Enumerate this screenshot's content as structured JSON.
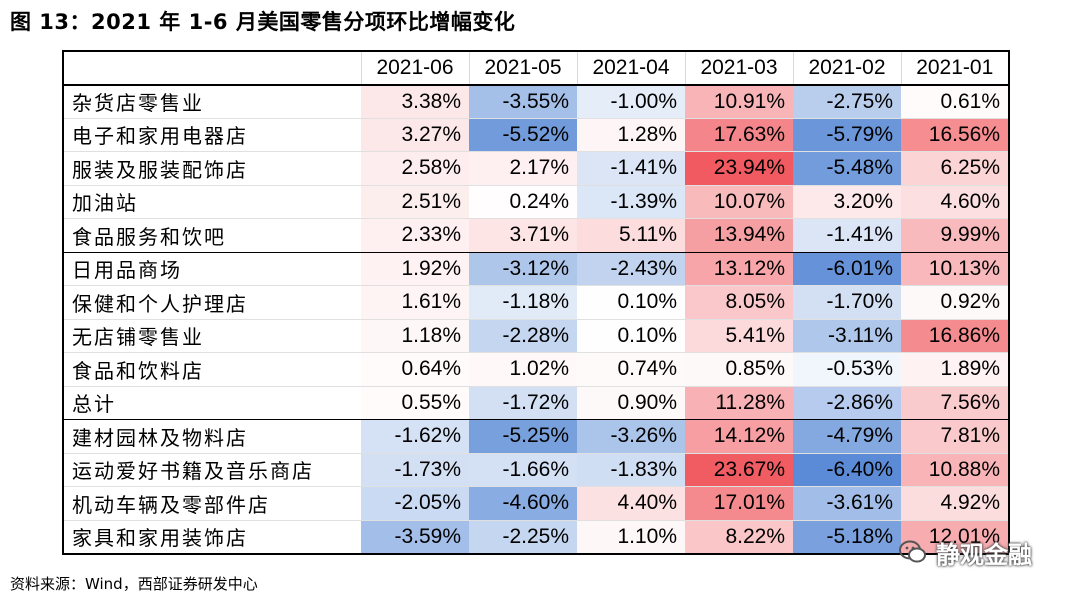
{
  "title": "图 13：2021 年 1-6 月美国零售分项环比增幅变化",
  "columns": [
    "2021-06",
    "2021-05",
    "2021-04",
    "2021-03",
    "2021-02",
    "2021-01"
  ],
  "rows": [
    {
      "label": "杂货店零售业",
      "values": [
        "3.38%",
        "-3.55%",
        "-1.00%",
        "10.91%",
        "-2.75%",
        "0.61%"
      ],
      "nums": [
        3.38,
        -3.55,
        -1.0,
        10.91,
        -2.75,
        0.61
      ]
    },
    {
      "label": "电子和家用电器店",
      "values": [
        "3.27%",
        "-5.52%",
        "1.28%",
        "17.63%",
        "-5.79%",
        "16.56%"
      ],
      "nums": [
        3.27,
        -5.52,
        1.28,
        17.63,
        -5.79,
        16.56
      ]
    },
    {
      "label": "服装及服装配饰店",
      "values": [
        "2.58%",
        "2.17%",
        "-1.41%",
        "23.94%",
        "-5.48%",
        "6.25%"
      ],
      "nums": [
        2.58,
        2.17,
        -1.41,
        23.94,
        -5.48,
        6.25
      ]
    },
    {
      "label": "加油站",
      "values": [
        "2.51%",
        "0.24%",
        "-1.39%",
        "10.07%",
        "3.20%",
        "4.60%"
      ],
      "nums": [
        2.51,
        0.24,
        -1.39,
        10.07,
        3.2,
        4.6
      ]
    },
    {
      "label": "食品服务和饮吧",
      "values": [
        "2.33%",
        "3.71%",
        "5.11%",
        "13.94%",
        "-1.41%",
        "9.99%"
      ],
      "nums": [
        2.33,
        3.71,
        5.11,
        13.94,
        -1.41,
        9.99
      ]
    },
    {
      "label": "日用品商场",
      "values": [
        "1.92%",
        "-3.12%",
        "-2.43%",
        "13.12%",
        "-6.01%",
        "10.13%"
      ],
      "nums": [
        1.92,
        -3.12,
        -2.43,
        13.12,
        -6.01,
        10.13
      ]
    },
    {
      "label": "保健和个人护理店",
      "values": [
        "1.61%",
        "-1.18%",
        "0.10%",
        "8.05%",
        "-1.70%",
        "0.92%"
      ],
      "nums": [
        1.61,
        -1.18,
        0.1,
        8.05,
        -1.7,
        0.92
      ]
    },
    {
      "label": "无店铺零售业",
      "values": [
        "1.18%",
        "-2.28%",
        "0.10%",
        "5.41%",
        "-3.11%",
        "16.86%"
      ],
      "nums": [
        1.18,
        -2.28,
        0.1,
        5.41,
        -3.11,
        16.86
      ]
    },
    {
      "label": "食品和饮料店",
      "values": [
        "0.64%",
        "1.02%",
        "0.74%",
        "0.85%",
        "-0.53%",
        "1.89%"
      ],
      "nums": [
        0.64,
        1.02,
        0.74,
        0.85,
        -0.53,
        1.89
      ]
    },
    {
      "label": "总计",
      "values": [
        "0.55%",
        "-1.72%",
        "0.90%",
        "11.28%",
        "-2.86%",
        "7.56%"
      ],
      "nums": [
        0.55,
        -1.72,
        0.9,
        11.28,
        -2.86,
        7.56
      ]
    },
    {
      "label": "建材园林及物料店",
      "values": [
        "-1.62%",
        "-5.25%",
        "-3.26%",
        "14.12%",
        "-4.79%",
        "7.81%"
      ],
      "nums": [
        -1.62,
        -5.25,
        -3.26,
        14.12,
        -4.79,
        7.81
      ]
    },
    {
      "label": "运动爱好书籍及音乐商店",
      "values": [
        "-1.73%",
        "-1.66%",
        "-1.83%",
        "23.67%",
        "-6.40%",
        "10.88%"
      ],
      "nums": [
        -1.73,
        -1.66,
        -1.83,
        23.67,
        -6.4,
        10.88
      ]
    },
    {
      "label": "机动车辆及零部件店",
      "values": [
        "-2.05%",
        "-4.60%",
        "4.40%",
        "17.01%",
        "-3.61%",
        "4.92%"
      ],
      "nums": [
        -2.05,
        -4.6,
        4.4,
        17.01,
        -3.61,
        4.92
      ]
    },
    {
      "label": "家具和家用装饰店",
      "values": [
        "-3.59%",
        "-2.25%",
        "1.10%",
        "8.22%",
        "-5.18%",
        "12.01%"
      ],
      "nums": [
        -3.59,
        -2.25,
        1.1,
        8.22,
        -5.18,
        12.01
      ]
    }
  ],
  "group_break_after": [
    4,
    9
  ],
  "source": "资料来源：Wind，西部证券研发中心",
  "watermark": "静观金融",
  "colors": {
    "negative_max": "#5b8bd6",
    "positive_max": "#f05a60",
    "neutral": "#ffffff"
  }
}
